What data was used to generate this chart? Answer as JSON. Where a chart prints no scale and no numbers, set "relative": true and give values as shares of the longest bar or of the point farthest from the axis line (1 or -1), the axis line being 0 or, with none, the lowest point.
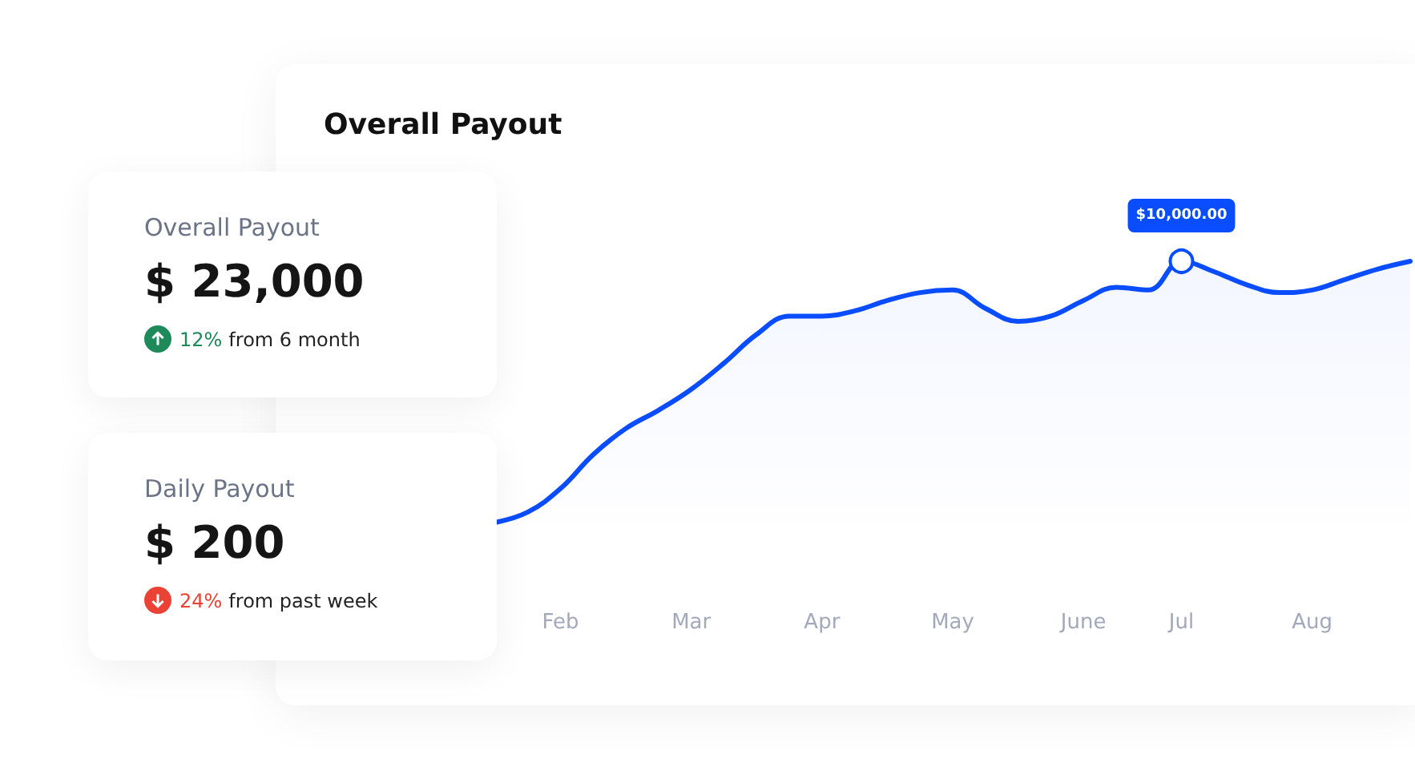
{
  "chart_data": [
    {
      "type": "area",
      "title": "Overall Payout",
      "relative": true,
      "grid": false,
      "line_style": "solid",
      "categories": [
        null,
        null,
        "Feb",
        null,
        null,
        null,
        "Mar",
        null,
        null,
        null,
        "Apr",
        null,
        null,
        null,
        "May",
        null,
        null,
        null,
        "June",
        null,
        null,
        "Jul",
        null,
        null,
        null,
        "Aug",
        null,
        null,
        null
      ],
      "series": [
        {
          "color": "#0a4dff",
          "values": [
            0,
            0.04,
            0.13,
            0.26,
            0.36,
            0.43,
            0.51,
            0.61,
            0.72,
            0.79,
            0.79,
            0.81,
            0.85,
            0.88,
            0.89,
            0.82,
            0.77,
            0.79,
            0.85,
            0.9,
            0.89,
            1,
            0.96,
            0.91,
            0.88,
            0.89,
            0.93,
            0.97,
            1
          ]
        }
      ],
      "annotations": [
        {
          "text": "$10,000.00",
          "x": "Jul",
          "y": 1
        }
      ]
    },
    {
      "type": "other",
      "title": "Overall Payout",
      "annotations": [
        "$ 23,000",
        "12%",
        "from 6 month"
      ],
      "colors": [
        "#1e8a5a"
      ]
    },
    {
      "type": "other",
      "title": "Daily Payout",
      "annotations": [
        "$ 200",
        "24%",
        "from past week"
      ],
      "colors": [
        "#ea4335"
      ]
    }
  ]
}
